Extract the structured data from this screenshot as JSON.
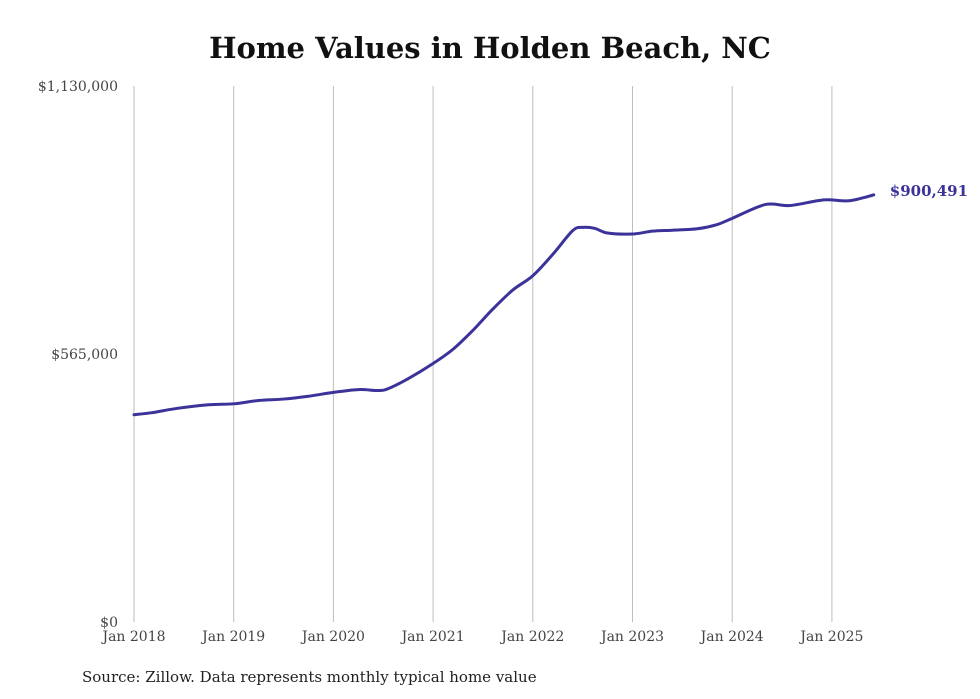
{
  "chart_data": {
    "type": "line",
    "title": "Home Values in Holden Beach, NC",
    "source_note": "Source: Zillow. Data represents monthly typical home value",
    "ylim": [
      0,
      1130000
    ],
    "yticks": [
      {
        "value": 0,
        "label": "$0"
      },
      {
        "value": 565000,
        "label": "$565,000"
      },
      {
        "value": 1130000,
        "label": "$1,130,000"
      }
    ],
    "xticks": [
      {
        "value": 2018.0,
        "label": "Jan 2018"
      },
      {
        "value": 2019.0,
        "label": "Jan 2019"
      },
      {
        "value": 2020.0,
        "label": "Jan 2020"
      },
      {
        "value": 2021.0,
        "label": "Jan 2021"
      },
      {
        "value": 2022.0,
        "label": "Jan 2022"
      },
      {
        "value": 2023.0,
        "label": "Jan 2023"
      },
      {
        "value": 2024.0,
        "label": "Jan 2024"
      },
      {
        "value": 2025.0,
        "label": "Jan 2025"
      }
    ],
    "xlim": [
      2018.0,
      2025.42
    ],
    "grid": "vertical",
    "line_color": "#3b3399",
    "end_label": "$900,491",
    "series": [
      {
        "points": [
          [
            2018.0,
            437000
          ],
          [
            2018.17,
            441000
          ],
          [
            2018.42,
            450000
          ],
          [
            2018.75,
            458000
          ],
          [
            2019.0,
            460000
          ],
          [
            2019.25,
            467000
          ],
          [
            2019.5,
            470000
          ],
          [
            2019.75,
            476000
          ],
          [
            2020.0,
            484000
          ],
          [
            2020.25,
            490000
          ],
          [
            2020.45,
            488000
          ],
          [
            2020.55,
            492000
          ],
          [
            2020.75,
            513000
          ],
          [
            2021.0,
            545000
          ],
          [
            2021.2,
            575000
          ],
          [
            2021.4,
            615000
          ],
          [
            2021.6,
            660000
          ],
          [
            2021.8,
            700000
          ],
          [
            2022.0,
            730000
          ],
          [
            2022.2,
            775000
          ],
          [
            2022.4,
            825000
          ],
          [
            2022.5,
            832000
          ],
          [
            2022.62,
            830000
          ],
          [
            2022.75,
            820000
          ],
          [
            2023.0,
            818000
          ],
          [
            2023.2,
            824000
          ],
          [
            2023.4,
            826000
          ],
          [
            2023.65,
            829000
          ],
          [
            2023.85,
            838000
          ],
          [
            2024.0,
            851000
          ],
          [
            2024.33,
            880000
          ],
          [
            2024.58,
            878000
          ],
          [
            2024.92,
            890000
          ],
          [
            2025.17,
            888000
          ],
          [
            2025.42,
            900491
          ]
        ]
      }
    ]
  }
}
